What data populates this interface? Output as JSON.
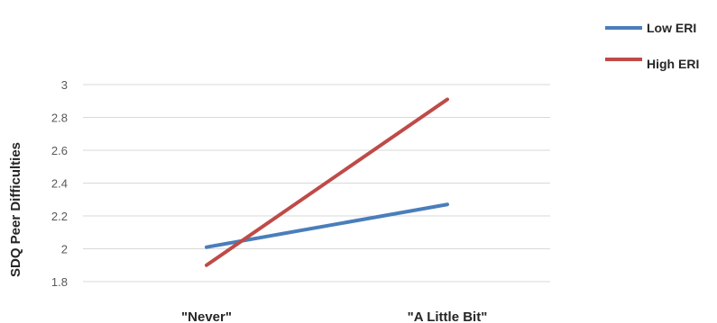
{
  "chart_data": {
    "type": "line",
    "categories": [
      "\"Never\"",
      "\"A Little Bit\""
    ],
    "series": [
      {
        "name": "Low ERI",
        "values": [
          2.01,
          2.27
        ],
        "color": "#4a7ebb"
      },
      {
        "name": "High ERI",
        "values": [
          1.9,
          2.91
        ],
        "color": "#be4b48"
      }
    ],
    "title": "",
    "xlabel": "",
    "ylabel": "SDQ Peer Difficulties",
    "ylim": [
      1.8,
      3.0
    ],
    "yticks": [
      1.8,
      2,
      2.2,
      2.4,
      2.6,
      2.8,
      3
    ],
    "grid": true,
    "legend_position": "top-right"
  }
}
